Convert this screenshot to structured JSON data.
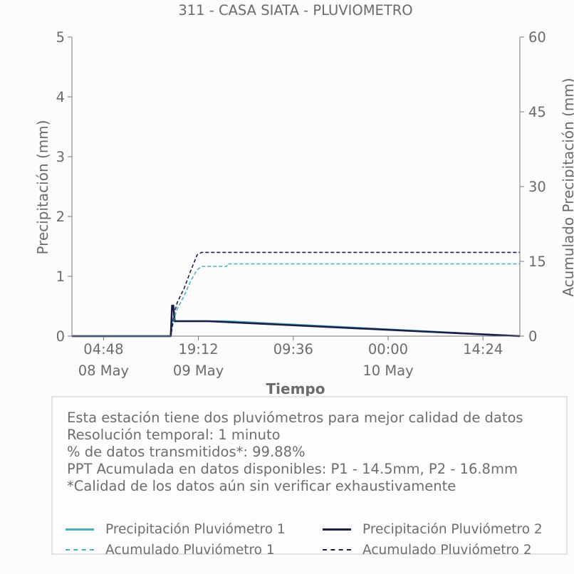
{
  "chart_data": {
    "type": "line",
    "title": "311 - CASA SIATA - PLUVIOMETRO",
    "xlabel": "Tiempo",
    "ylabel": "Precipitación (mm)",
    "y2label": "Acumulado Precipitación (mm)",
    "x_range": [
      "2019-05-08 00:00",
      "2019-05-10 20:00"
    ],
    "ylim": [
      0,
      5
    ],
    "y2lim": [
      0,
      60
    ],
    "yticks": [
      "0",
      "1",
      "2",
      "3",
      "4",
      "5"
    ],
    "y2ticks": [
      "0",
      "15",
      "30",
      "45",
      "60"
    ],
    "xticks": [
      {
        "time": "2019-05-08 04:48",
        "label": "04:48",
        "date_label": "08 May"
      },
      {
        "time": "2019-05-08 19:12",
        "label": "19:12",
        "date_label": "09 May"
      },
      {
        "time": "2019-05-09 09:36",
        "label": "09:36",
        "date_label": ""
      },
      {
        "time": "2019-05-10 00:00",
        "label": "00:00",
        "date_label": "10 May"
      },
      {
        "time": "2019-05-10 14:24",
        "label": "14:24",
        "date_label": ""
      }
    ],
    "legend_position": "bottom",
    "series": [
      {
        "name": "Precipitación Pluviómetro 1",
        "axis": "left",
        "style": "solid",
        "color": "#4bb0be",
        "points": [
          [
            "2019-05-08 00:00",
            0
          ],
          [
            "2019-05-08 15:00",
            0
          ],
          [
            "2019-05-08 15:10",
            0.25
          ],
          [
            "2019-05-08 15:25",
            0.25
          ],
          [
            "2019-05-08 15:35",
            0.25
          ],
          [
            "2019-05-08 16:00",
            0.25
          ],
          [
            "2019-05-08 16:30",
            0.25
          ],
          [
            "2019-05-08 17:00",
            0.25
          ],
          [
            "2019-05-08 17:30",
            0.25
          ],
          [
            "2019-05-08 18:00",
            0.25
          ],
          [
            "2019-05-08 18:30",
            0.25
          ],
          [
            "2019-05-08 19:00",
            0.25
          ],
          [
            "2019-05-08 19:30",
            0.25
          ],
          [
            "2019-05-08 20:12",
            0.25
          ],
          [
            "2019-05-08 20:40",
            0.25
          ],
          [
            "2019-05-08 23:30",
            0.25
          ],
          [
            "2019-05-10 20:00",
            0
          ]
        ]
      },
      {
        "name": "Precipitación Pluviómetro 2",
        "axis": "left",
        "style": "solid",
        "color": "#1c1f45",
        "points": [
          [
            "2019-05-08 00:00",
            0
          ],
          [
            "2019-05-08 15:00",
            0
          ],
          [
            "2019-05-08 15:12",
            0.51
          ],
          [
            "2019-05-08 15:24",
            0.51
          ],
          [
            "2019-05-08 15:36",
            0.25
          ],
          [
            "2019-05-08 16:00",
            0.25
          ],
          [
            "2019-05-08 16:30",
            0.25
          ],
          [
            "2019-05-08 17:00",
            0.25
          ],
          [
            "2019-05-08 17:30",
            0.25
          ],
          [
            "2019-05-08 18:00",
            0.25
          ],
          [
            "2019-05-08 18:30",
            0.25
          ],
          [
            "2019-05-08 19:00",
            0.25
          ],
          [
            "2019-05-08 19:30",
            0.25
          ],
          [
            "2019-05-08 20:00",
            0.25
          ],
          [
            "2019-05-08 20:40",
            0.25
          ],
          [
            "2019-05-10 20:00",
            0
          ]
        ]
      },
      {
        "name": "Acumulado Pluviómetro 1",
        "axis": "right",
        "style": "dashed",
        "color": "#4bb0be",
        "points": [
          [
            "2019-05-08 00:00",
            0
          ],
          [
            "2019-05-08 15:00",
            0
          ],
          [
            "2019-05-08 15:30",
            3.5
          ],
          [
            "2019-05-08 16:00",
            5.5
          ],
          [
            "2019-05-08 17:00",
            8.0
          ],
          [
            "2019-05-08 18:00",
            11.0
          ],
          [
            "2019-05-08 19:00",
            13.3
          ],
          [
            "2019-05-08 19:40",
            14.0
          ],
          [
            "2019-05-08 23:30",
            14.0
          ],
          [
            "2019-05-08 23:35",
            14.5
          ],
          [
            "2019-05-10 20:00",
            14.5
          ]
        ]
      },
      {
        "name": "Acumulado Pluviómetro 2",
        "axis": "right",
        "style": "dashed",
        "color": "#1c1f45",
        "points": [
          [
            "2019-05-08 00:00",
            0
          ],
          [
            "2019-05-08 15:00",
            0
          ],
          [
            "2019-05-08 15:30",
            4.5
          ],
          [
            "2019-05-08 16:00",
            6.8
          ],
          [
            "2019-05-08 17:00",
            9.5
          ],
          [
            "2019-05-08 18:00",
            13.0
          ],
          [
            "2019-05-08 19:00",
            16.3
          ],
          [
            "2019-05-08 19:40",
            16.8
          ],
          [
            "2019-05-10 20:00",
            16.8
          ]
        ]
      }
    ]
  },
  "info": {
    "line1": "Esta estación tiene dos pluviómetros para mejor calidad de datos",
    "line2": "Resolución temporal: 1 minuto",
    "line3": "% de datos transmitidos*: 99.88%",
    "line4": "PPT Acumulada en datos disponibles: P1 - 14.5mm, P2 - 16.8mm",
    "line5": "*Calidad de los datos aún sin verificar exhaustivamente"
  },
  "legend": {
    "p1": "Precipitación Pluviómetro 1",
    "p2": "Precipitación Pluviómetro 2",
    "a1": "Acumulado Pluviómetro 1",
    "a2": "Acumulado Pluviómetro 2"
  },
  "colors": {
    "p1": "#4bb0be",
    "p2": "#1c1f45",
    "axis": "#777777",
    "text": "#6b6b6b"
  }
}
